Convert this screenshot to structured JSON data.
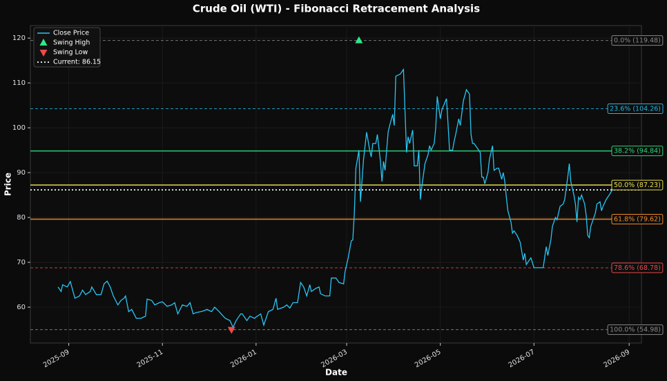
{
  "chart_data": {
    "type": "line",
    "title": "Crude Oil (WTI) - Fibonacci Retracement Analysis",
    "x_label": "Date",
    "y_label": "Price",
    "xlim": [
      -25,
      373
    ],
    "ylim": [
      52,
      122.8
    ],
    "xticks": [
      {
        "value": 0,
        "label": "2025-09"
      },
      {
        "value": 61,
        "label": "2025-11"
      },
      {
        "value": 122,
        "label": "2026-01"
      },
      {
        "value": 181,
        "label": "2026-03"
      },
      {
        "value": 242,
        "label": "2026-05"
      },
      {
        "value": 303,
        "label": "2026-07"
      },
      {
        "value": 365,
        "label": "2026-09"
      }
    ],
    "yticks": [
      60,
      70,
      80,
      90,
      100,
      110,
      120
    ],
    "grid": true,
    "legend": "upper left",
    "x": [
      -7,
      -5,
      -4,
      -1,
      1,
      4,
      7,
      9,
      11,
      14,
      15,
      18,
      21,
      23,
      25,
      27,
      29,
      32,
      34,
      36,
      37,
      39,
      41,
      44,
      47,
      50,
      51,
      54,
      56,
      59,
      61,
      64,
      67,
      69,
      71,
      74,
      77,
      79,
      81,
      83,
      86,
      88,
      90,
      93,
      95,
      98,
      100,
      102,
      105,
      107,
      109,
      112,
      113,
      116,
      118,
      121,
      122,
      125,
      127,
      130,
      133,
      135,
      136,
      140,
      142,
      144,
      146,
      149,
      151,
      153,
      155,
      157,
      158,
      161,
      163,
      164,
      167,
      170,
      171,
      174,
      176,
      179,
      180,
      182,
      184,
      185,
      186,
      187,
      189,
      190,
      192,
      194,
      196,
      197,
      198,
      200,
      201,
      203,
      204,
      205,
      206,
      208,
      209,
      211,
      212,
      213,
      216,
      218,
      220,
      221,
      222,
      224,
      225,
      227,
      228,
      229,
      230,
      232,
      234,
      235,
      236,
      238,
      239,
      240,
      242,
      243,
      246,
      247,
      248,
      250,
      251,
      252,
      254,
      255,
      257,
      259,
      261,
      262,
      263,
      264,
      266,
      268,
      269,
      270,
      271,
      273,
      274,
      276,
      277,
      279,
      280,
      282,
      283,
      284,
      285,
      286,
      288,
      289,
      290,
      292,
      294,
      296,
      297,
      298,
      300,
      301,
      303,
      305,
      307,
      309,
      311,
      312,
      314,
      315,
      317,
      318,
      320,
      322,
      323,
      325,
      326,
      327,
      329,
      330,
      331,
      332,
      333,
      334,
      336,
      337,
      338,
      339,
      340,
      342,
      343,
      344,
      346,
      347,
      348,
      350,
      352,
      354
    ],
    "series": [
      {
        "name": "Close Price",
        "color": "#29c6f4",
        "values": [
          64.5,
          63.5,
          65,
          64.5,
          65.7,
          62,
          62.5,
          63.8,
          62.8,
          63.5,
          64.5,
          62.8,
          62.8,
          65.2,
          65.8,
          64.5,
          62.5,
          60.5,
          61.5,
          62,
          62.5,
          59,
          59.5,
          57.5,
          57.5,
          58,
          61.8,
          61.5,
          60.5,
          61,
          61.2,
          60.2,
          60.5,
          61,
          58.5,
          60.5,
          60.2,
          61,
          58.5,
          58.8,
          59,
          59.2,
          59.5,
          59,
          60,
          59,
          58.2,
          57.5,
          57,
          55.5,
          57,
          58.5,
          58.5,
          57,
          58,
          57.5,
          57.8,
          58.5,
          56,
          59,
          59.5,
          62,
          59.5,
          60,
          60.5,
          59.8,
          61,
          61,
          65.5,
          64.5,
          62.5,
          65,
          63.5,
          64.2,
          64.5,
          63,
          62.5,
          62.5,
          66.5,
          66.5,
          65.5,
          65.2,
          68,
          71,
          74.8,
          75,
          81,
          91,
          95,
          83.5,
          93,
          99,
          95,
          93.5,
          96.5,
          96.5,
          98.5,
          92.5,
          88,
          92.5,
          90.5,
          99,
          100.5,
          103,
          100.5,
          111.5,
          112,
          113,
          94.5,
          98,
          96.5,
          99.5,
          91.5,
          91.5,
          95,
          84,
          87,
          92,
          94,
          96,
          95,
          96.5,
          100,
          107,
          102,
          104,
          106.5,
          101,
          95,
          95,
          97,
          98.5,
          102,
          100.5,
          106,
          108.5,
          107.5,
          98.5,
          96.5,
          96.5,
          95.5,
          94.5,
          89,
          89,
          87.5,
          90,
          93,
          96,
          90.5,
          91,
          91,
          88.5,
          90,
          88,
          84.5,
          81.5,
          79,
          76.5,
          77,
          76,
          74.5,
          70.5,
          72,
          69.5,
          70.5,
          71,
          68.8,
          68.8,
          68.8,
          68.8,
          73.5,
          71.5,
          75,
          78,
          80,
          79.5,
          82.5,
          83,
          84,
          89,
          92,
          88,
          85,
          83,
          79,
          84.5,
          84,
          85,
          83,
          80.5,
          76,
          75.5,
          78,
          80,
          81,
          83,
          83.5,
          81.5,
          82.5,
          84,
          85,
          86.15
        ]
      }
    ],
    "swing_high": {
      "name": "Swing High",
      "x": 189,
      "value": 119.48,
      "color": "#2ee88a"
    },
    "swing_low": {
      "name": "Swing Low",
      "x": 106,
      "value": 54.98,
      "color": "#f04a4a"
    },
    "current": {
      "label": "Current: 86.15",
      "value": 86.15,
      "color": "#ffffff"
    },
    "levels": [
      {
        "label": "0.0% (119.48)",
        "value": 119.48,
        "color": "#8a8a8a",
        "style": "dashed"
      },
      {
        "label": "23.6% (104.26)",
        "value": 104.26,
        "color": "#29b6e0",
        "style": "dashed"
      },
      {
        "label": "38.2% (94.84)",
        "value": 94.84,
        "color": "#2ed47a",
        "style": "solid"
      },
      {
        "label": "50.0% (87.23)",
        "value": 87.23,
        "color": "#e8e04a",
        "style": "solid"
      },
      {
        "label": "61.8% (79.62)",
        "value": 79.62,
        "color": "#f08a2a",
        "style": "solid"
      },
      {
        "label": "78.6% (68.78)",
        "value": 68.78,
        "color": "#e84a4a",
        "style": "dashed"
      },
      {
        "label": "100.0% (54.98)",
        "value": 54.98,
        "color": "#8a8a8a",
        "style": "dashed"
      }
    ]
  }
}
